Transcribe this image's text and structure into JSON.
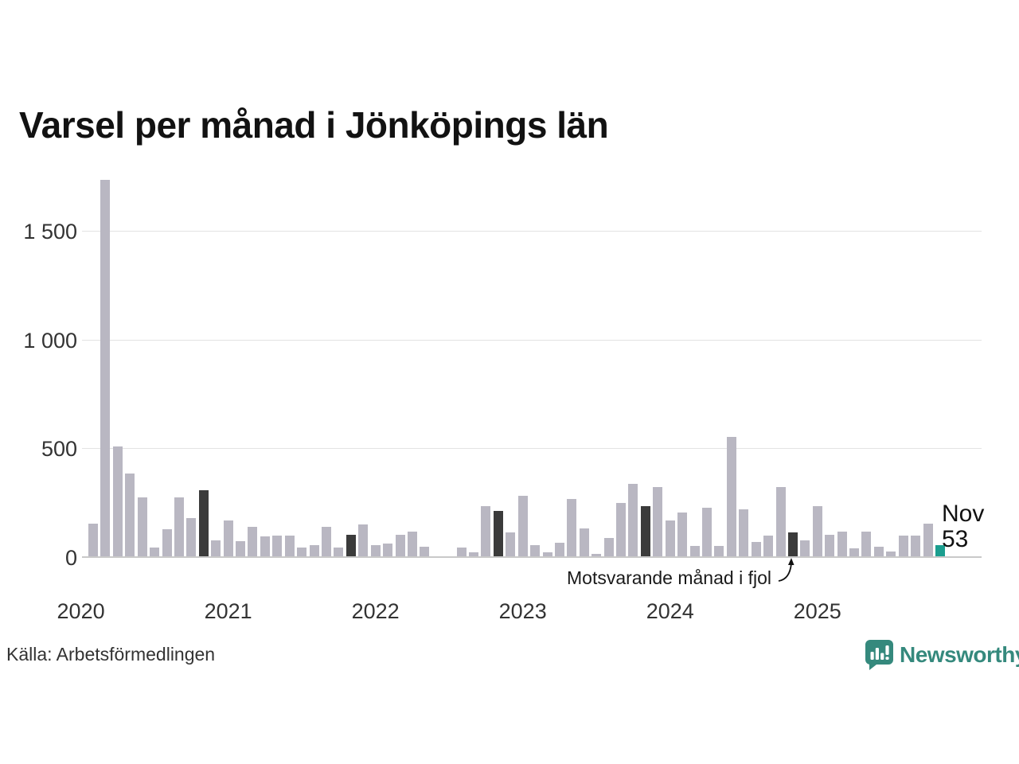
{
  "title": "Varsel per månad i Jönköpings län",
  "source": "Källa: Arbetsförmedlingen",
  "annotation": {
    "text": "Motsvarande månad i fjol"
  },
  "current_point_label": {
    "month": "Nov",
    "value": "53"
  },
  "logo": {
    "name": "Newsworthy"
  },
  "colors": {
    "bar": "#B9B7C2",
    "prior_november_bar": "#3B3B3B",
    "current_bar": "#1B9E8F",
    "logo_teal": "#35897D",
    "grid": "#E3E3E3",
    "axis_line": "#C9C9C9",
    "tick_text": "#333333",
    "title_text": "#121212"
  },
  "y_axis": {
    "ticks": [
      {
        "value": 0,
        "label": "0"
      },
      {
        "value": 500,
        "label": "500"
      },
      {
        "value": 1000,
        "label": "1 000"
      },
      {
        "value": 1500,
        "label": "1 500"
      }
    ]
  },
  "x_axis": {
    "years": [
      "2020",
      "2021",
      "2022",
      "2023",
      "2024",
      "2025"
    ]
  },
  "chart_data": {
    "type": "bar",
    "title": "Varsel per månad i Jönköpings län",
    "xlabel": "",
    "ylabel": "",
    "ylim": [
      0,
      1760
    ],
    "yticks": [
      0,
      500,
      1000,
      1500
    ],
    "grid": true,
    "legend": false,
    "x": [
      "2020-02",
      "2020-03",
      "2020-04",
      "2020-05",
      "2020-06",
      "2020-07",
      "2020-08",
      "2020-09",
      "2020-10",
      "2020-11",
      "2020-12",
      "2021-01",
      "2021-02",
      "2021-03",
      "2021-04",
      "2021-05",
      "2021-06",
      "2021-07",
      "2021-08",
      "2021-09",
      "2021-10",
      "2021-11",
      "2021-12",
      "2022-01",
      "2022-02",
      "2022-03",
      "2022-04",
      "2022-05",
      "2022-06",
      "2022-07",
      "2022-08",
      "2022-09",
      "2022-10",
      "2022-11",
      "2022-12",
      "2023-01",
      "2023-02",
      "2023-03",
      "2023-04",
      "2023-05",
      "2023-06",
      "2023-07",
      "2023-08",
      "2023-09",
      "2023-10",
      "2023-11",
      "2023-12",
      "2024-01",
      "2024-02",
      "2024-03",
      "2024-04",
      "2024-05",
      "2024-06",
      "2024-07",
      "2024-08",
      "2024-09",
      "2024-10",
      "2024-11",
      "2024-12",
      "2025-01",
      "2025-02",
      "2025-03",
      "2025-04",
      "2025-05",
      "2025-06",
      "2025-07",
      "2025-08",
      "2025-09",
      "2025-10",
      "2025-11"
    ],
    "values": [
      150,
      1730,
      505,
      380,
      270,
      42,
      125,
      270,
      175,
      305,
      75,
      165,
      70,
      135,
      90,
      95,
      95,
      40,
      50,
      135,
      42,
      100,
      145,
      50,
      60,
      100,
      115,
      44,
      0,
      0,
      40,
      20,
      230,
      210,
      110,
      280,
      53,
      20,
      64,
      263,
      127,
      12,
      85,
      247,
      333,
      229,
      317,
      165,
      200,
      48,
      222,
      48,
      550,
      215,
      66,
      96,
      320,
      108,
      73,
      230,
      100,
      113,
      36,
      113,
      44,
      21,
      96,
      96,
      150,
      53
    ],
    "highlight": {
      "prior_november_indices": [
        9,
        21,
        33,
        45,
        57
      ],
      "current_index": 69,
      "annotated_index": 57,
      "annotation": "Motsvarande månad i fjol",
      "current_label": "Nov 53"
    }
  }
}
